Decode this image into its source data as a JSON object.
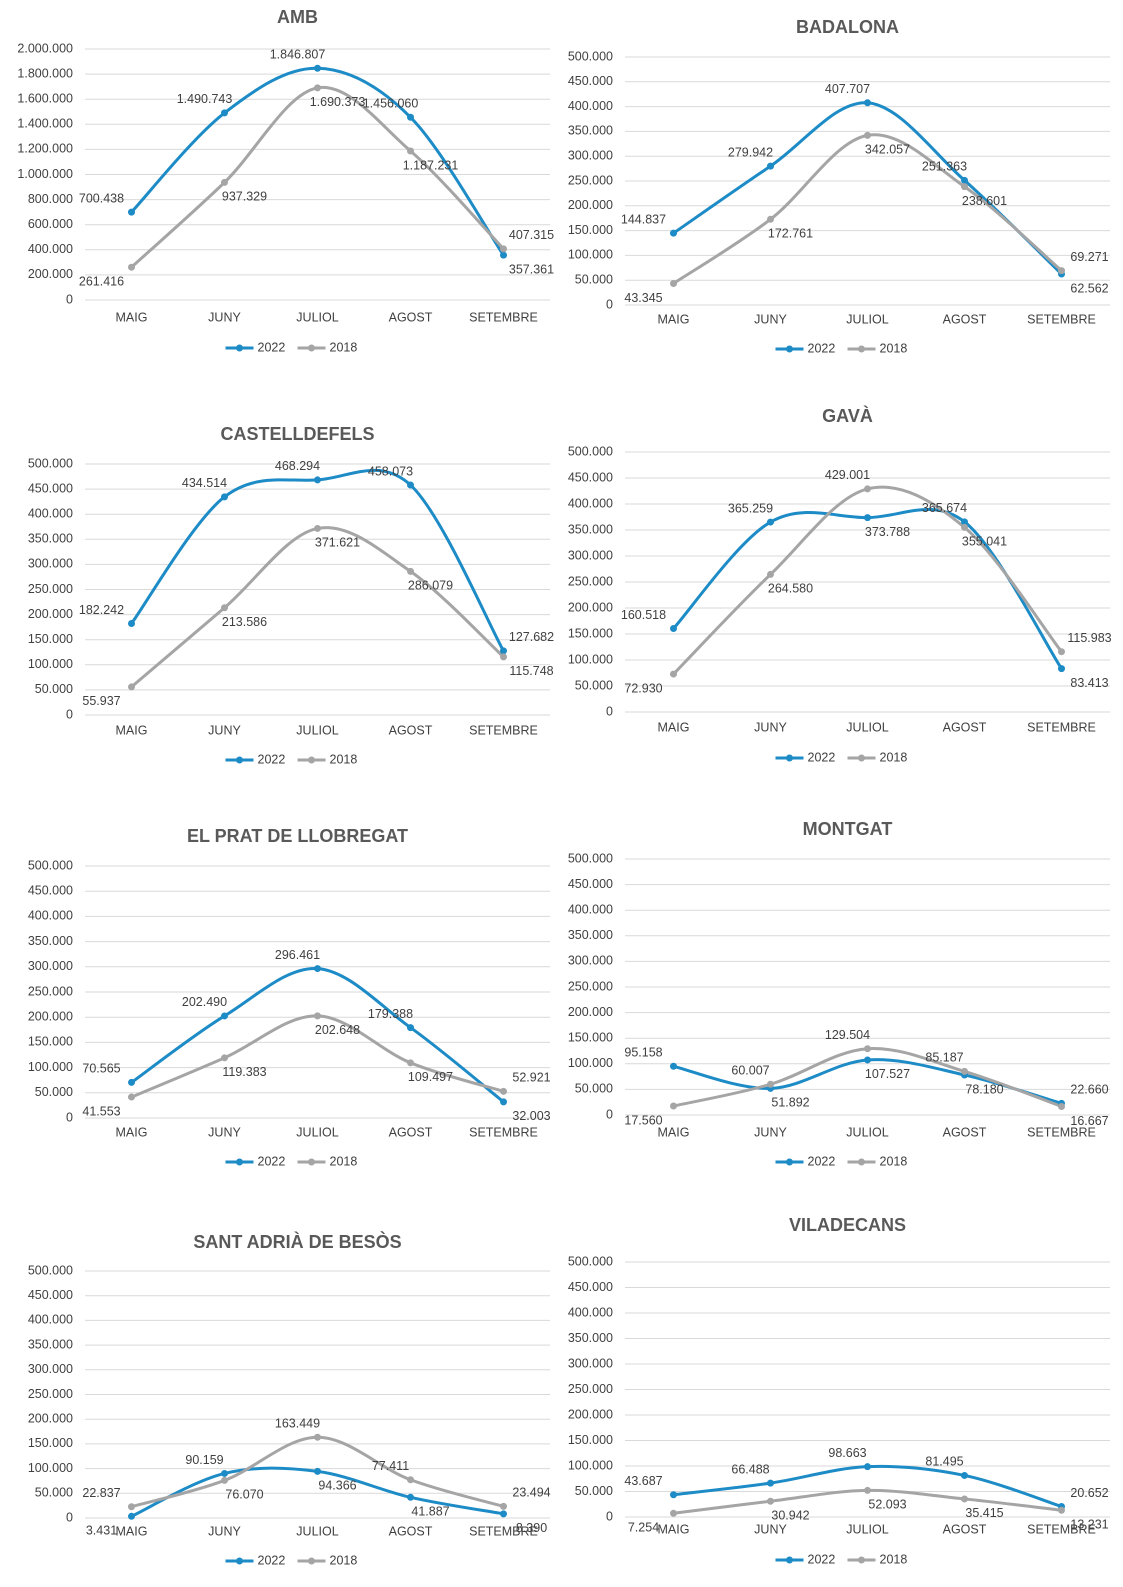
{
  "chart_data": [
    {
      "type": "line",
      "title": "AMB",
      "categories": [
        "MAIG",
        "JUNY",
        "JULIOL",
        "AGOST",
        "SETEMBRE"
      ],
      "grid": true,
      "legend": "bottom",
      "ylim": [
        0,
        2000000
      ],
      "yticks": [
        0,
        {
          "value": 200000,
          "label": "200.000"
        },
        {
          "value": 400000,
          "label": "400.000"
        },
        {
          "value": 600000,
          "label": "600.000"
        },
        {
          "value": 800000,
          "label": "800.000"
        },
        {
          "value": 1000000,
          "label": "1.000.000"
        },
        {
          "value": 1200000,
          "label": "1.200.000"
        },
        {
          "value": 1400000,
          "label": "1.400.000"
        },
        {
          "value": 1600000,
          "label": "1.600.000"
        },
        {
          "value": 1800000,
          "label": "1.800.000"
        },
        {
          "value": 2000000,
          "label": "2.000.000"
        }
      ],
      "series": [
        {
          "name": "2022",
          "color": "#1c8bc6",
          "values": [
            700438,
            1490743,
            1846807,
            1456060,
            357361
          ],
          "value_labels": [
            "700.438",
            "1.490.743",
            "1.846.807",
            "1.456.060",
            "357.361"
          ]
        },
        {
          "name": "2018",
          "color": "#a5a5a5",
          "values": [
            261416,
            937329,
            1690373,
            1187231,
            407315
          ],
          "value_labels": [
            "261.416",
            "937.329",
            "1.690.373",
            "1.187.231",
            "407.315"
          ]
        }
      ]
    },
    {
      "type": "line",
      "title": "BADALONA",
      "categories": [
        "MAIG",
        "JUNY",
        "JULIOL",
        "AGOST",
        "SETEMBRE"
      ],
      "grid": true,
      "legend": "bottom",
      "ylim": [
        0,
        500000
      ],
      "yticks": [
        0,
        {
          "value": 50000,
          "label": "50.000"
        },
        {
          "value": 100000,
          "label": "100.000"
        },
        {
          "value": 150000,
          "label": "150.000"
        },
        {
          "value": 200000,
          "label": "200.000"
        },
        {
          "value": 250000,
          "label": "250.000"
        },
        {
          "value": 300000,
          "label": "300.000"
        },
        {
          "value": 350000,
          "label": "350.000"
        },
        {
          "value": 400000,
          "label": "400.000"
        },
        {
          "value": 450000,
          "label": "450.000"
        },
        {
          "value": 500000,
          "label": "500.000"
        }
      ],
      "series": [
        {
          "name": "2022",
          "color": "#1c8bc6",
          "values": [
            144837,
            279942,
            407707,
            251363,
            62562
          ],
          "value_labels": [
            "144.837",
            "279.942",
            "407.707",
            "251.363",
            "62.562"
          ]
        },
        {
          "name": "2018",
          "color": "#a5a5a5",
          "values": [
            43345,
            172761,
            342057,
            238601,
            69271
          ],
          "value_labels": [
            "43.345",
            "172.761",
            "342.057",
            "238.601",
            "69.271"
          ]
        }
      ]
    },
    {
      "type": "line",
      "title": "CASTELLDEFELS",
      "categories": [
        "MAIG",
        "JUNY",
        "JULIOL",
        "AGOST",
        "SETEMBRE"
      ],
      "grid": true,
      "legend": "bottom",
      "ylim": [
        0,
        500000
      ],
      "yticks": [
        0,
        {
          "value": 50000,
          "label": "50.000"
        },
        {
          "value": 100000,
          "label": "100.000"
        },
        {
          "value": 150000,
          "label": "150.000"
        },
        {
          "value": 200000,
          "label": "200.000"
        },
        {
          "value": 250000,
          "label": "250.000"
        },
        {
          "value": 300000,
          "label": "300.000"
        },
        {
          "value": 350000,
          "label": "350.000"
        },
        {
          "value": 400000,
          "label": "400.000"
        },
        {
          "value": 450000,
          "label": "450.000"
        },
        {
          "value": 500000,
          "label": "500.000"
        }
      ],
      "series": [
        {
          "name": "2022",
          "color": "#1c8bc6",
          "values": [
            182242,
            434514,
            468294,
            458073,
            127682
          ],
          "value_labels": [
            "182.242",
            "434.514",
            "468.294",
            "458.073",
            "127.682"
          ]
        },
        {
          "name": "2018",
          "color": "#a5a5a5",
          "values": [
            55937,
            213586,
            371621,
            286079,
            115748
          ],
          "value_labels": [
            "55.937",
            "213.586",
            "371.621",
            "286.079",
            "115.748"
          ]
        }
      ]
    },
    {
      "type": "line",
      "title": "GAVÀ",
      "categories": [
        "MAIG",
        "JUNY",
        "JULIOL",
        "AGOST",
        "SETEMBRE"
      ],
      "grid": true,
      "legend": "bottom",
      "ylim": [
        0,
        500000
      ],
      "yticks": [
        0,
        {
          "value": 50000,
          "label": "50.000"
        },
        {
          "value": 100000,
          "label": "100.000"
        },
        {
          "value": 150000,
          "label": "150.000"
        },
        {
          "value": 200000,
          "label": "200.000"
        },
        {
          "value": 250000,
          "label": "250.000"
        },
        {
          "value": 300000,
          "label": "300.000"
        },
        {
          "value": 350000,
          "label": "350.000"
        },
        {
          "value": 400000,
          "label": "400.000"
        },
        {
          "value": 450000,
          "label": "450.000"
        },
        {
          "value": 500000,
          "label": "500.000"
        }
      ],
      "series": [
        {
          "name": "2022",
          "color": "#1c8bc6",
          "values": [
            160518,
            365259,
            373788,
            365674,
            83413
          ],
          "value_labels": [
            "160.518",
            "365.259",
            "373.788",
            "365.674",
            "83.413"
          ]
        },
        {
          "name": "2018",
          "color": "#a5a5a5",
          "values": [
            72930,
            264580,
            429001,
            355041,
            115983
          ],
          "value_labels": [
            "72.930",
            "264.580",
            "429.001",
            "355.041",
            "115.983"
          ]
        }
      ]
    },
    {
      "type": "line",
      "title": "EL PRAT DE LLOBREGAT",
      "categories": [
        "MAIG",
        "JUNY",
        "JULIOL",
        "AGOST",
        "SETEMBRE"
      ],
      "grid": true,
      "legend": "bottom",
      "ylim": [
        0,
        500000
      ],
      "yticks": [
        0,
        {
          "value": 50000,
          "label": "50.000"
        },
        {
          "value": 100000,
          "label": "100.000"
        },
        {
          "value": 150000,
          "label": "150.000"
        },
        {
          "value": 200000,
          "label": "200.000"
        },
        {
          "value": 250000,
          "label": "250.000"
        },
        {
          "value": 300000,
          "label": "300.000"
        },
        {
          "value": 350000,
          "label": "350.000"
        },
        {
          "value": 400000,
          "label": "400.000"
        },
        {
          "value": 450000,
          "label": "450.000"
        },
        {
          "value": 500000,
          "label": "500.000"
        }
      ],
      "series": [
        {
          "name": "2022",
          "color": "#1c8bc6",
          "values": [
            70565,
            202490,
            296461,
            179388,
            32003
          ],
          "value_labels": [
            "70.565",
            "202.490",
            "296.461",
            "179.388",
            "32.003"
          ]
        },
        {
          "name": "2018",
          "color": "#a5a5a5",
          "values": [
            41553,
            119383,
            202648,
            109497,
            52921
          ],
          "value_labels": [
            "41.553",
            "119.383",
            "202.648",
            "109.497",
            "52.921"
          ]
        }
      ]
    },
    {
      "type": "line",
      "title": "MONTGAT",
      "categories": [
        "MAIG",
        "JUNY",
        "JULIOL",
        "AGOST",
        "SETEMBRE"
      ],
      "grid": true,
      "legend": "bottom",
      "ylim": [
        0,
        500000
      ],
      "yticks": [
        0,
        {
          "value": 50000,
          "label": "50.000"
        },
        {
          "value": 100000,
          "label": "100.000"
        },
        {
          "value": 150000,
          "label": "150.000"
        },
        {
          "value": 200000,
          "label": "200.000"
        },
        {
          "value": 250000,
          "label": "250.000"
        },
        {
          "value": 300000,
          "label": "300.000"
        },
        {
          "value": 350000,
          "label": "350.000"
        },
        {
          "value": 400000,
          "label": "400.000"
        },
        {
          "value": 450000,
          "label": "450.000"
        },
        {
          "value": 500000,
          "label": "500.000"
        }
      ],
      "series": [
        {
          "name": "2022",
          "color": "#1c8bc6",
          "values": [
            95158,
            51892,
            107527,
            78180,
            22660
          ],
          "value_labels": [
            "95.158",
            "51.892",
            "107.527",
            "78.180",
            "22.660"
          ]
        },
        {
          "name": "2018",
          "color": "#a5a5a5",
          "values": [
            17560,
            60007,
            129504,
            85187,
            16667
          ],
          "value_labels": [
            "17.560",
            "60.007",
            "129.504",
            "85.187",
            "16.667"
          ]
        }
      ]
    },
    {
      "type": "line",
      "title": "SANT ADRIÀ DE BESÒS",
      "categories": [
        "MAIG",
        "JUNY",
        "JULIOL",
        "AGOST",
        "SETEMBRE"
      ],
      "grid": true,
      "legend": "bottom",
      "ylim": [
        0,
        500000
      ],
      "yticks": [
        0,
        {
          "value": 50000,
          "label": "50.000"
        },
        {
          "value": 100000,
          "label": "100.000"
        },
        {
          "value": 150000,
          "label": "150.000"
        },
        {
          "value": 200000,
          "label": "200.000"
        },
        {
          "value": 250000,
          "label": "250.000"
        },
        {
          "value": 300000,
          "label": "300.000"
        },
        {
          "value": 350000,
          "label": "350.000"
        },
        {
          "value": 400000,
          "label": "400.000"
        },
        {
          "value": 450000,
          "label": "450.000"
        },
        {
          "value": 500000,
          "label": "500.000"
        }
      ],
      "series": [
        {
          "name": "2022",
          "color": "#1c8bc6",
          "values": [
            3431,
            90159,
            94366,
            41887,
            8390
          ],
          "value_labels": [
            "3.431",
            "90.159",
            "94.366",
            "41.887",
            "8.390"
          ]
        },
        {
          "name": "2018",
          "color": "#a5a5a5",
          "values": [
            22837,
            76070,
            163449,
            77411,
            23494
          ],
          "value_labels": [
            "22.837",
            "76.070",
            "163.449",
            "77.411",
            "23.494"
          ]
        }
      ]
    },
    {
      "type": "line",
      "title": "VILADECANS",
      "categories": [
        "MAIG",
        "JUNY",
        "JULIOL",
        "AGOST",
        "SETEMBRE"
      ],
      "grid": true,
      "legend": "bottom",
      "ylim": [
        0,
        500000
      ],
      "yticks": [
        0,
        {
          "value": 50000,
          "label": "50.000"
        },
        {
          "value": 100000,
          "label": "100.000"
        },
        {
          "value": 150000,
          "label": "150.000"
        },
        {
          "value": 200000,
          "label": "200.000"
        },
        {
          "value": 250000,
          "label": "250.000"
        },
        {
          "value": 300000,
          "label": "300.000"
        },
        {
          "value": 350000,
          "label": "350.000"
        },
        {
          "value": 400000,
          "label": "400.000"
        },
        {
          "value": 450000,
          "label": "450.000"
        },
        {
          "value": 500000,
          "label": "500.000"
        }
      ],
      "series": [
        {
          "name": "2022",
          "color": "#1c8bc6",
          "values": [
            43687,
            66488,
            98663,
            81495,
            20652
          ],
          "value_labels": [
            "43.687",
            "66.488",
            "98.663",
            "81.495",
            "20.652"
          ]
        },
        {
          "name": "2018",
          "color": "#a5a5a5",
          "values": [
            7254,
            30942,
            52093,
            35415,
            13231
          ],
          "value_labels": [
            "7.254",
            "30.942",
            "52.093",
            "35.415",
            "13.231"
          ]
        }
      ]
    }
  ]
}
